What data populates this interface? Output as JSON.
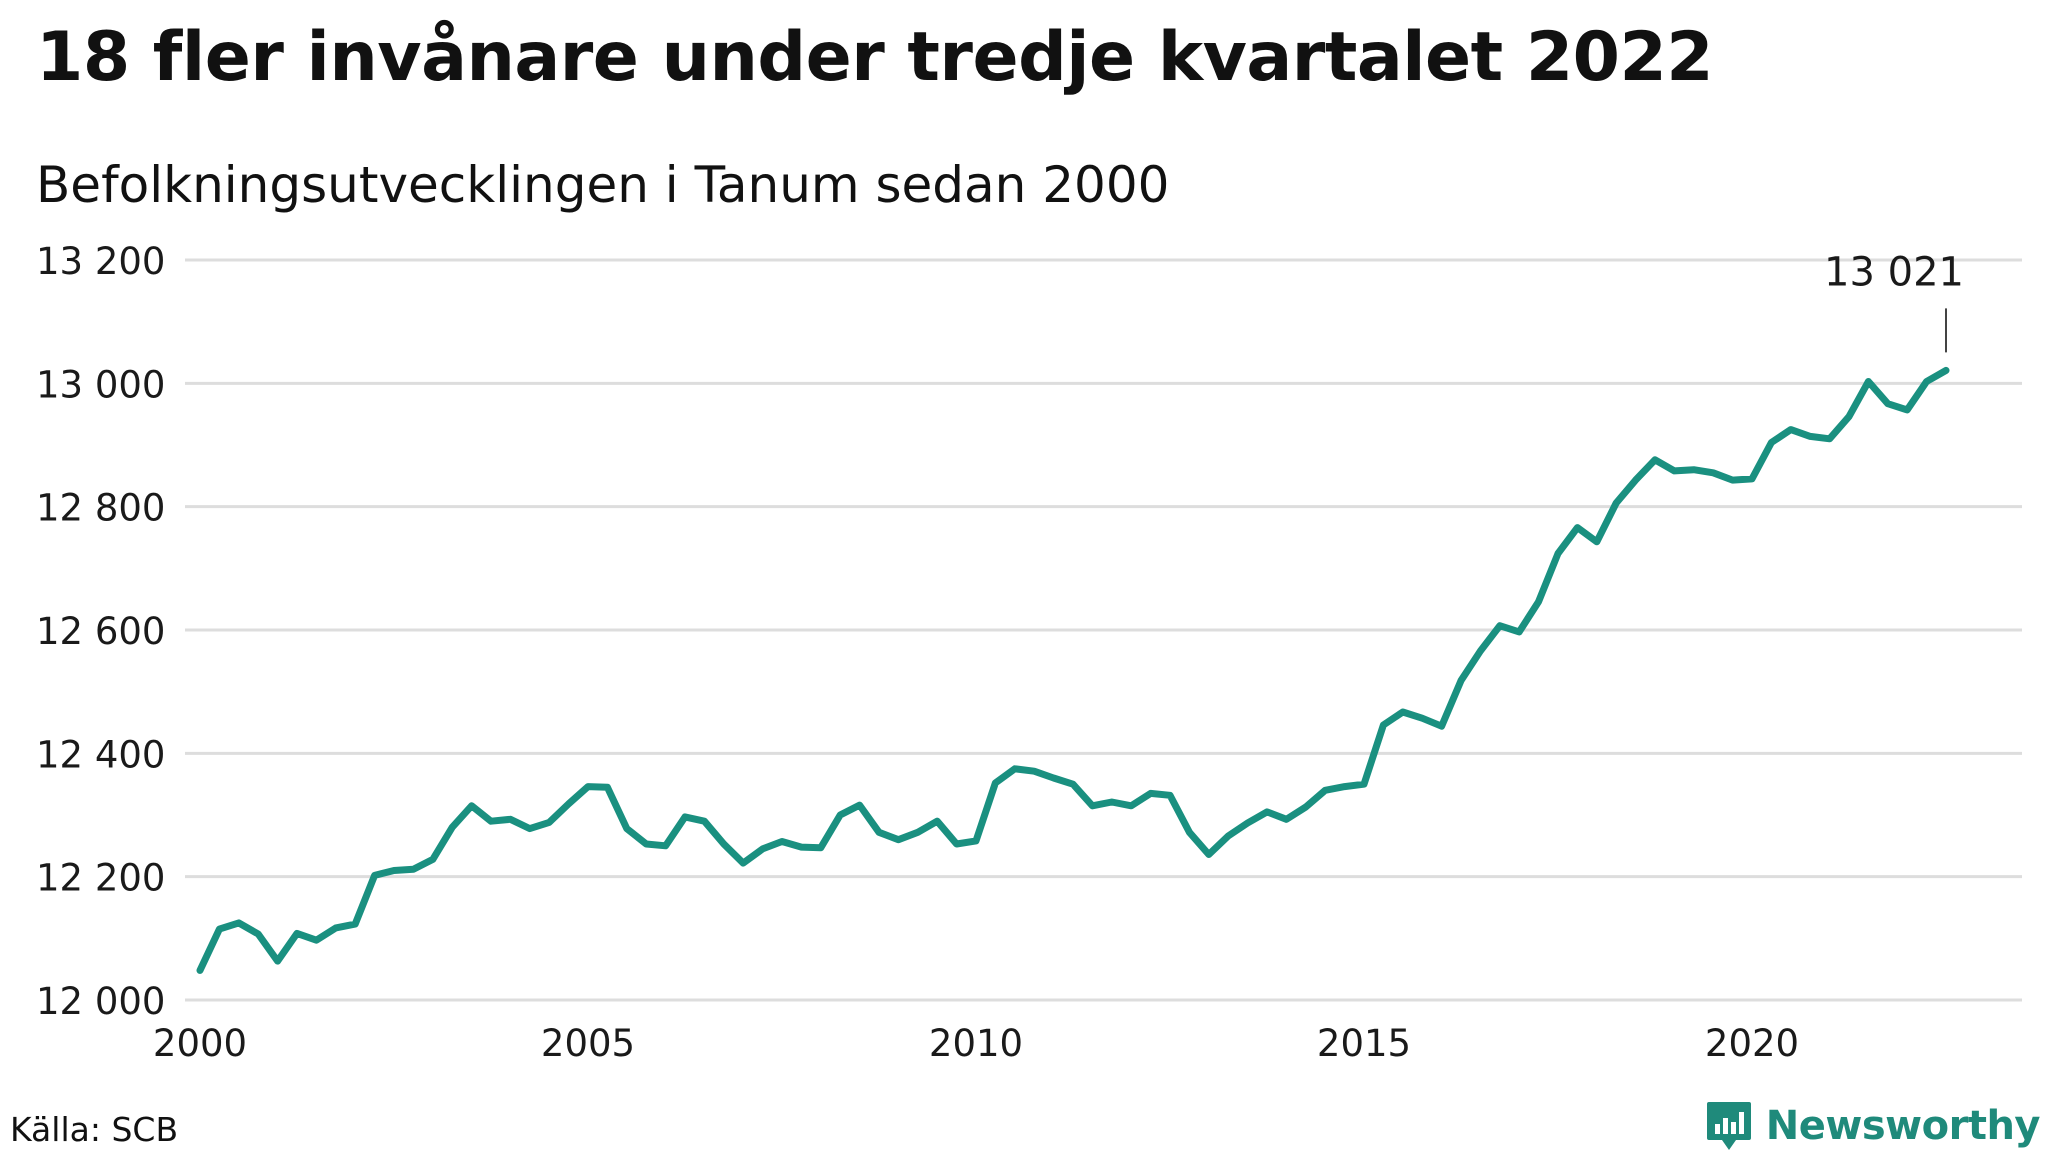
{
  "header": {
    "title": "18 fler invånare under tredje kvartalet 2022",
    "subtitle": "Befolkningsutvecklingen i Tanum sedan 2000"
  },
  "footer": {
    "source": "Källa: SCB",
    "brand": "Newsworthy",
    "brand_icon": "bar-chart-badge-icon"
  },
  "colors": {
    "line": "#1a9080",
    "grid": "#dddddd",
    "brand": "#1f8a7b"
  },
  "chart_data": {
    "type": "line",
    "x_start_year": 2000.0,
    "x_step": 0.25,
    "y": [
      12048,
      12115,
      12125,
      12107,
      12063,
      12108,
      12097,
      12117,
      12123,
      12202,
      12210,
      12212,
      12228,
      12280,
      12315,
      12290,
      12293,
      12278,
      12288,
      12318,
      12346,
      12345,
      12278,
      12253,
      12250,
      12297,
      12290,
      12253,
      12222,
      12245,
      12257,
      12248,
      12247,
      12300,
      12316,
      12272,
      12260,
      12272,
      12290,
      12253,
      12258,
      12352,
      12375,
      12371,
      12360,
      12350,
      12315,
      12321,
      12315,
      12335,
      12332,
      12272,
      12236,
      12266,
      12287,
      12305,
      12293,
      12313,
      12340,
      12346,
      12350,
      12446,
      12467,
      12457,
      12444,
      12518,
      12566,
      12607,
      12597,
      12646,
      12724,
      12766,
      12743,
      12806,
      12843,
      12876,
      12858,
      12860,
      12855,
      12843,
      12845,
      12904,
      12925,
      12914,
      12910,
      12946,
      13003,
      12967,
      12957,
      13003,
      13021
    ],
    "xlim": [
      2000,
      2023.4
    ],
    "ylim": [
      12000,
      13200
    ],
    "x_ticks": [
      2000,
      2005,
      2010,
      2015,
      2020
    ],
    "x_tick_labels": [
      "2000",
      "2005",
      "2010",
      "2015",
      "2020"
    ],
    "y_ticks": [
      12000,
      12200,
      12400,
      12600,
      12800,
      13000,
      13200
    ],
    "y_tick_labels": [
      "12 000",
      "12 200",
      "12 400",
      "12 600",
      "12 800",
      "13 000",
      "13 200"
    ],
    "grid": true,
    "last_value_label": "13 021"
  }
}
